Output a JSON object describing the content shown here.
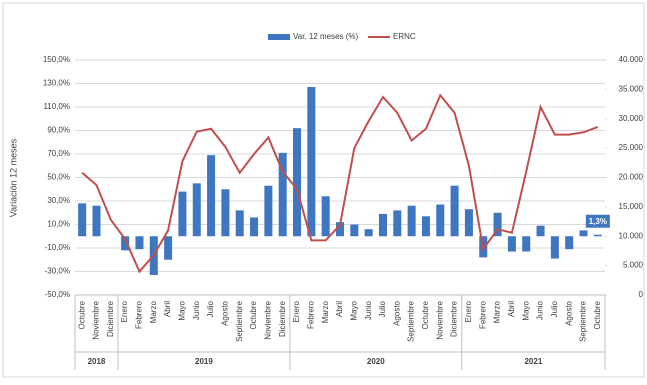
{
  "chart_data": {
    "type": "bar_line",
    "groups": [
      {
        "label": "2018",
        "months": [
          "Octubre",
          "Noviembre",
          "Diciembre"
        ]
      },
      {
        "label": "2019",
        "months": [
          "Enero",
          "Febrero",
          "Marzo",
          "Abril",
          "Mayo",
          "Junio",
          "Julio",
          "Agosto",
          "Septiembre",
          "Octubre",
          "Noviembre",
          "Diciembre"
        ]
      },
      {
        "label": "2020",
        "months": [
          "Enero",
          "Febrero",
          "Marzo",
          "Abril",
          "Mayo",
          "Junio",
          "Julio",
          "Agosto",
          "Septiembre",
          "Octubre",
          "Noviembre",
          "Diciembre"
        ]
      },
      {
        "label": "2021",
        "months": [
          "Enero",
          "Febrero",
          "Marzo",
          "Abril",
          "Mayo",
          "Junio",
          "Julio",
          "Agosto",
          "Septiembre",
          "Octubre"
        ]
      }
    ],
    "ylabel": "Variación 12 meses",
    "ylim": [
      -50,
      150
    ],
    "yticks": [
      {
        "value": -50,
        "label": "-50,0%"
      },
      {
        "value": -30,
        "label": "-30,0%"
      },
      {
        "value": -10,
        "label": "-10,0%"
      },
      {
        "value": 10,
        "label": "10,0%"
      },
      {
        "value": 30,
        "label": "30,0%"
      },
      {
        "value": 50,
        "label": "50,0%"
      },
      {
        "value": 70,
        "label": "70,0%"
      },
      {
        "value": 90,
        "label": "90,0%"
      },
      {
        "value": 110,
        "label": "110,0%"
      },
      {
        "value": 130,
        "label": "130,0%"
      },
      {
        "value": 150,
        "label": "150,0%"
      }
    ],
    "y2lim": [
      0,
      40000
    ],
    "y2ticks": [
      0,
      {
        "value": 5000,
        "label": "5.000"
      },
      {
        "value": 10000,
        "label": "10.000"
      },
      {
        "value": 15000,
        "label": "15.000"
      },
      {
        "value": 20000,
        "label": "20.000"
      },
      {
        "value": 25000,
        "label": "25.000"
      },
      {
        "value": 30000,
        "label": "30.000"
      },
      {
        "value": 35000,
        "label": "35.000"
      },
      {
        "value": 40000,
        "label": "40.000"
      }
    ],
    "grid": true,
    "legend": "top",
    "series": [
      {
        "name": "Var. 12 meses (%)",
        "type": "bar",
        "color": "#3f76c0",
        "values": [
          28,
          26,
          0,
          -12,
          -11,
          -33,
          -20,
          38,
          45,
          69,
          40,
          22,
          16,
          43,
          71,
          92,
          127,
          34,
          12,
          10,
          6,
          19,
          22,
          26,
          17,
          27,
          43,
          23,
          -18,
          20,
          -13,
          -13,
          9,
          -19,
          -11,
          5,
          1.3
        ],
        "value_labels": [
          null,
          null,
          null,
          null,
          null,
          null,
          null,
          null,
          null,
          null,
          null,
          null,
          null,
          null,
          null,
          null,
          null,
          null,
          null,
          null,
          null,
          null,
          null,
          null,
          null,
          null,
          null,
          null,
          null,
          null,
          null,
          null,
          null,
          null,
          null,
          null,
          "1,3%"
        ]
      },
      {
        "name": "ERNC",
        "type": "line",
        "color": "#c0504d",
        "axis": "y2",
        "values": [
          20800,
          18700,
          12800,
          9500,
          4000,
          6800,
          11000,
          22800,
          27800,
          28300,
          25200,
          20800,
          24000,
          26800,
          21000,
          18000,
          9300,
          9300,
          11900,
          25000,
          29600,
          33700,
          31000,
          26300,
          28300,
          34000,
          31000,
          22000,
          7800,
          11200,
          10600,
          21000,
          32000,
          27300,
          27300,
          27700,
          28600
        ]
      }
    ]
  }
}
